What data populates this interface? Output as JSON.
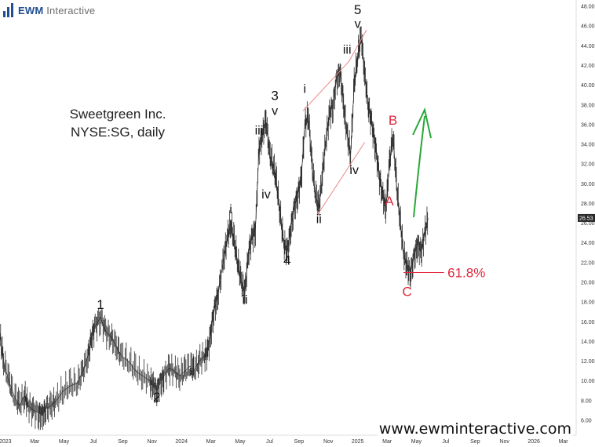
{
  "brand": {
    "name": "EWM",
    "suffix": "Interactive"
  },
  "title": {
    "line1": "Sweetgreen Inc.",
    "line2": "NYSE:SG, daily"
  },
  "website": "www.ewminteractive.com",
  "current_price_label": "26.53",
  "fib_label": "61.8%",
  "colors": {
    "price": "#2b2b2b",
    "wave_red": "#e0283c",
    "arrow_green": "#2aa63a",
    "channel": "#e88888",
    "axis": "#dddddd"
  },
  "chart_data": {
    "type": "line",
    "title": "Sweetgreen Inc.",
    "subtitle": "NYSE:SG, daily",
    "ylim": [
      5,
      49
    ],
    "yticks": [
      6,
      8,
      10,
      12,
      14,
      16,
      18,
      20,
      22,
      24,
      26,
      28,
      30,
      32,
      34,
      36,
      38,
      40,
      42,
      44,
      46,
      48
    ],
    "x_ticks": [
      {
        "t": 2023.0,
        "label": "2023"
      },
      {
        "t": 2023.167,
        "label": "Mar"
      },
      {
        "t": 2023.333,
        "label": "May"
      },
      {
        "t": 2023.5,
        "label": "Jul"
      },
      {
        "t": 2023.667,
        "label": "Sep"
      },
      {
        "t": 2023.833,
        "label": "Nov"
      },
      {
        "t": 2024.0,
        "label": "2024"
      },
      {
        "t": 2024.167,
        "label": "Mar"
      },
      {
        "t": 2024.333,
        "label": "May"
      },
      {
        "t": 2024.5,
        "label": "Jul"
      },
      {
        "t": 2024.667,
        "label": "Sep"
      },
      {
        "t": 2024.833,
        "label": "Nov"
      },
      {
        "t": 2025.0,
        "label": "2025"
      },
      {
        "t": 2025.167,
        "label": "Mar"
      },
      {
        "t": 2025.333,
        "label": "May"
      },
      {
        "t": 2025.5,
        "label": "Jul"
      },
      {
        "t": 2025.667,
        "label": "Sep"
      },
      {
        "t": 2025.833,
        "label": "Nov"
      },
      {
        "t": 2026.0,
        "label": "2026"
      },
      {
        "t": 2026.167,
        "label": "Mar"
      }
    ],
    "series": [
      {
        "values": [
          [
            2022.97,
            14.5
          ],
          [
            2022.99,
            12.0
          ],
          [
            2023.02,
            10.0
          ],
          [
            2023.05,
            8.5
          ],
          [
            2023.08,
            7.5
          ],
          [
            2023.11,
            8.5
          ],
          [
            2023.13,
            7.5
          ],
          [
            2023.16,
            7.0
          ],
          [
            2023.19,
            6.8
          ],
          [
            2023.21,
            6.5
          ],
          [
            2023.23,
            7.2
          ],
          [
            2023.26,
            7.5
          ],
          [
            2023.29,
            8.0
          ],
          [
            2023.33,
            9.0
          ],
          [
            2023.37,
            9.5
          ],
          [
            2023.41,
            9.8
          ],
          [
            2023.44,
            11.0
          ],
          [
            2023.47,
            12.5
          ],
          [
            2023.49,
            14.5
          ],
          [
            2023.51,
            15.5
          ],
          [
            2023.54,
            16.5
          ],
          [
            2023.57,
            15.0
          ],
          [
            2023.6,
            14.5
          ],
          [
            2023.63,
            13.5
          ],
          [
            2023.66,
            12.5
          ],
          [
            2023.7,
            12.0
          ],
          [
            2023.74,
            11.0
          ],
          [
            2023.78,
            10.5
          ],
          [
            2023.82,
            10.0
          ],
          [
            2023.84,
            9.5
          ],
          [
            2023.86,
            9.0
          ],
          [
            2023.88,
            9.8
          ],
          [
            2023.9,
            10.5
          ],
          [
            2023.93,
            11.3
          ],
          [
            2023.96,
            11.0
          ],
          [
            2023.99,
            10.5
          ],
          [
            2024.02,
            11.0
          ],
          [
            2024.05,
            11.5
          ],
          [
            2024.07,
            11.0
          ],
          [
            2024.1,
            12.0
          ],
          [
            2024.13,
            12.5
          ],
          [
            2024.15,
            13.0
          ],
          [
            2024.17,
            15.5
          ],
          [
            2024.19,
            17.5
          ],
          [
            2024.21,
            19.0
          ],
          [
            2024.24,
            22.5
          ],
          [
            2024.26,
            24.5
          ],
          [
            2024.28,
            26.0
          ],
          [
            2024.3,
            24.0
          ],
          [
            2024.32,
            22.0
          ],
          [
            2024.34,
            20.0
          ],
          [
            2024.36,
            19.0
          ],
          [
            2024.38,
            23.0
          ],
          [
            2024.4,
            24.5
          ],
          [
            2024.42,
            25.5
          ],
          [
            2024.44,
            33.5
          ],
          [
            2024.46,
            35.0
          ],
          [
            2024.48,
            36.5
          ],
          [
            2024.5,
            33.0
          ],
          [
            2024.52,
            32.0
          ],
          [
            2024.54,
            30.0
          ],
          [
            2024.56,
            27.0
          ],
          [
            2024.58,
            24.0
          ],
          [
            2024.6,
            23.0
          ],
          [
            2024.62,
            25.5
          ],
          [
            2024.64,
            27.5
          ],
          [
            2024.66,
            29.0
          ],
          [
            2024.68,
            30.5
          ],
          [
            2024.7,
            36.0
          ],
          [
            2024.72,
            37.0
          ],
          [
            2024.74,
            32.0
          ],
          [
            2024.76,
            29.0
          ],
          [
            2024.78,
            27.5
          ],
          [
            2024.8,
            31.0
          ],
          [
            2024.82,
            34.5
          ],
          [
            2024.84,
            37.0
          ],
          [
            2024.86,
            38.0
          ],
          [
            2024.88,
            40.5
          ],
          [
            2024.9,
            41.5
          ],
          [
            2024.92,
            38.0
          ],
          [
            2024.94,
            35.0
          ],
          [
            2024.96,
            33.0
          ],
          [
            2024.98,
            40.0
          ],
          [
            2025.0,
            43.0
          ],
          [
            2025.02,
            45.0
          ],
          [
            2025.04,
            41.0
          ],
          [
            2025.06,
            38.0
          ],
          [
            2025.08,
            36.0
          ],
          [
            2025.1,
            34.0
          ],
          [
            2025.12,
            31.0
          ],
          [
            2025.14,
            29.0
          ],
          [
            2025.16,
            27.5
          ],
          [
            2025.18,
            32.0
          ],
          [
            2025.2,
            35.0
          ],
          [
            2025.22,
            30.0
          ],
          [
            2025.24,
            26.5
          ],
          [
            2025.26,
            23.0
          ],
          [
            2025.28,
            21.5
          ],
          [
            2025.3,
            21.0
          ],
          [
            2025.32,
            22.5
          ],
          [
            2025.34,
            24.0
          ],
          [
            2025.36,
            23.0
          ],
          [
            2025.38,
            25.0
          ],
          [
            2025.4,
            26.5
          ]
        ]
      }
    ],
    "annotations": [
      {
        "text": "1",
        "t": 2023.54,
        "y": 17.3,
        "color": "#111111"
      },
      {
        "text": "2",
        "t": 2023.86,
        "y": 7.9,
        "color": "#111111"
      },
      {
        "text": "i",
        "t": 2024.28,
        "y": 27.0,
        "color": "#111111"
      },
      {
        "text": "ii",
        "t": 2024.36,
        "y": 17.8,
        "color": "#111111"
      },
      {
        "text": "iii",
        "t": 2024.44,
        "y": 35.0,
        "color": "#111111"
      },
      {
        "text": "iv",
        "t": 2024.48,
        "y": 28.5,
        "color": "#111111"
      },
      {
        "text": "3",
        "t": 2024.53,
        "y": 38.5,
        "color": "#111111"
      },
      {
        "text": "v",
        "t": 2024.53,
        "y": 37.0,
        "color": "#111111"
      },
      {
        "text": "4",
        "t": 2024.6,
        "y": 21.8,
        "color": "#111111"
      },
      {
        "text": "i",
        "t": 2024.7,
        "y": 39.2,
        "color": "#111111"
      },
      {
        "text": "ii",
        "t": 2024.78,
        "y": 26.0,
        "color": "#111111"
      },
      {
        "text": "iii",
        "t": 2024.94,
        "y": 43.2,
        "color": "#111111"
      },
      {
        "text": "iv",
        "t": 2024.98,
        "y": 31.0,
        "color": "#111111"
      },
      {
        "text": "5",
        "t": 2025.0,
        "y": 47.2,
        "color": "#111111"
      },
      {
        "text": "v",
        "t": 2025.0,
        "y": 45.8,
        "color": "#111111"
      },
      {
        "text": "B",
        "t": 2025.2,
        "y": 36.0,
        "color": "#e0283c"
      },
      {
        "text": "A",
        "t": 2025.18,
        "y": 27.8,
        "color": "#e0283c"
      },
      {
        "text": "C",
        "t": 2025.28,
        "y": 18.6,
        "color": "#e0283c"
      }
    ]
  }
}
